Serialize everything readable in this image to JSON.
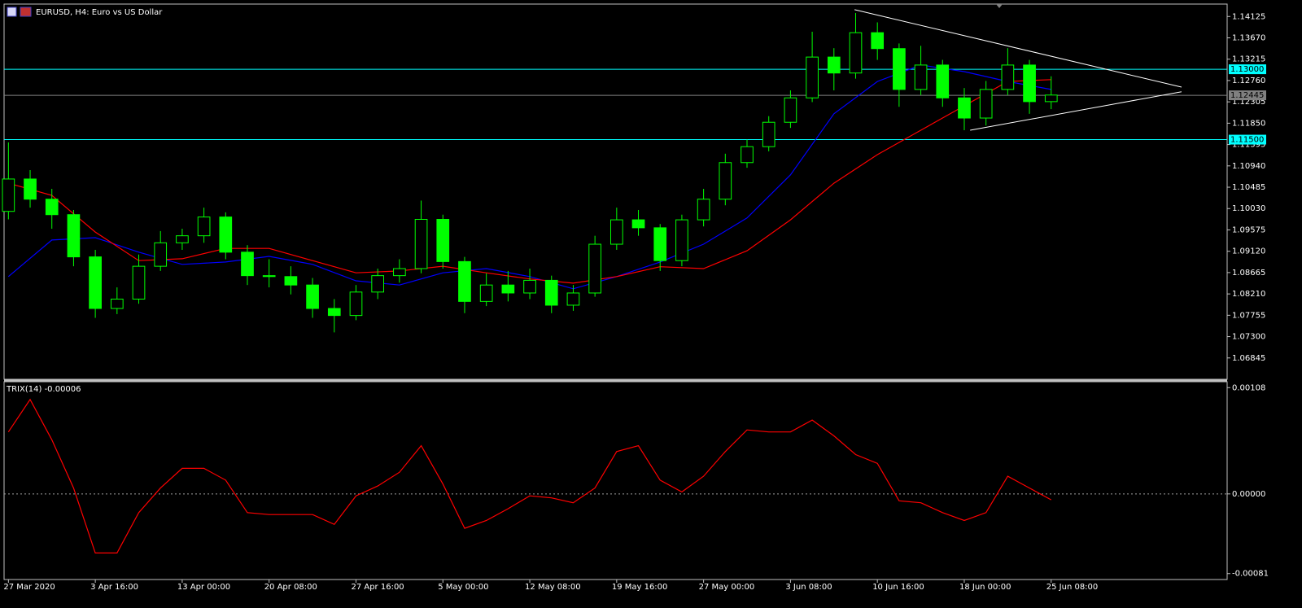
{
  "chart_data": [
    {
      "type": "candlestick",
      "title": "EURUSD, H4:  Euro vs US Dollar",
      "color": "#00ff00",
      "xlim": [
        -0.2,
        56.1
      ],
      "ylim": [
        1.0639,
        1.1439
      ],
      "yticks": [
        1.14125,
        {
          "value": 1.1367,
          "label": "1.13670"
        },
        1.13215,
        {
          "value": 1.1276,
          "label": "1.12760"
        },
        1.12305,
        {
          "value": 1.1185,
          "label": "1.11850"
        },
        1.11395,
        {
          "value": 1.1094,
          "label": "1.10940"
        },
        1.10485,
        {
          "value": 1.1003,
          "label": "1.10030"
        },
        1.09575,
        {
          "value": 1.0912,
          "label": "1.09120"
        },
        1.08665,
        {
          "value": 1.0821,
          "label": "1.08210"
        },
        1.07755,
        {
          "value": 1.073,
          "label": "1.07300"
        },
        1.06845
      ],
      "open": [
        1.0997,
        1.1066,
        1.1023,
        1.099,
        1.09,
        1.079,
        1.081,
        1.088,
        1.093,
        1.0945,
        1.0985,
        1.091,
        1.086,
        1.0858,
        1.084,
        1.079,
        1.0775,
        1.0825,
        1.086,
        1.0875,
        1.098,
        1.089,
        1.0805,
        1.084,
        1.0823,
        1.085,
        1.0797,
        1.0823,
        1.0927,
        1.0979,
        1.0962,
        1.0892,
        1.0979,
        1.1023,
        1.1101,
        1.1135,
        1.1187,
        1.1239,
        1.1326,
        1.1292,
        1.1378,
        1.1344,
        1.1257,
        1.1309,
        1.1239,
        1.1196,
        1.1257,
        1.1309,
        1.1231
      ],
      "high": [
        1.1144,
        1.1085,
        1.1045,
        1.1,
        1.0915,
        1.0835,
        1.0905,
        1.0955,
        1.096,
        1.1005,
        1.0995,
        1.0925,
        1.0895,
        1.088,
        1.0855,
        1.081,
        1.084,
        1.0875,
        1.0895,
        1.102,
        1.099,
        1.09,
        1.0865,
        1.087,
        1.0875,
        1.086,
        1.084,
        1.0945,
        1.1005,
        1.1,
        1.097,
        1.099,
        1.1045,
        1.112,
        1.115,
        1.12,
        1.1255,
        1.138,
        1.1345,
        1.142,
        1.14,
        1.1355,
        1.135,
        1.132,
        1.126,
        1.1275,
        1.1345,
        1.132,
        1.1285
      ],
      "low": [
        1.098,
        1.1005,
        1.096,
        1.088,
        1.077,
        1.0778,
        1.08,
        1.087,
        1.0915,
        1.093,
        1.0895,
        1.084,
        1.0835,
        1.082,
        1.077,
        1.0739,
        1.0765,
        1.081,
        1.0845,
        1.0865,
        1.0875,
        1.078,
        1.0795,
        1.0805,
        1.081,
        1.078,
        1.0785,
        1.0815,
        1.0915,
        1.0945,
        1.087,
        1.088,
        1.0965,
        1.101,
        1.109,
        1.1125,
        1.1175,
        1.123,
        1.1255,
        1.128,
        1.132,
        1.122,
        1.1245,
        1.122,
        1.117,
        1.118,
        1.1245,
        1.1205,
        1.1215
      ],
      "close": [
        1.1066,
        1.1023,
        1.099,
        1.09,
        1.079,
        1.081,
        1.088,
        1.093,
        1.0945,
        1.0985,
        1.091,
        1.086,
        1.0858,
        1.084,
        1.079,
        1.0775,
        1.0825,
        1.086,
        1.0875,
        1.098,
        1.089,
        1.0805,
        1.084,
        1.0823,
        1.085,
        1.0797,
        1.0823,
        1.0927,
        1.0979,
        1.0962,
        1.0892,
        1.0979,
        1.1023,
        1.1101,
        1.1135,
        1.1187,
        1.1239,
        1.1326,
        1.1292,
        1.1378,
        1.1344,
        1.1257,
        1.1309,
        1.1239,
        1.1196,
        1.1257,
        1.1309,
        1.1231,
        1.1245
      ],
      "series": [
        {
          "color": "#0000ff",
          "x": [
            0,
            2,
            4,
            6,
            8,
            10,
            12,
            14,
            16,
            18,
            20,
            22,
            24,
            26,
            28,
            30,
            32,
            34,
            36,
            38,
            40,
            42,
            44,
            46,
            48
          ],
          "values": [
            1.0858,
            1.0936,
            1.0941,
            1.091,
            1.0884,
            1.0889,
            1.0901,
            1.0884,
            1.0849,
            1.084,
            1.0866,
            1.0875,
            1.0858,
            1.0832,
            1.0858,
            1.0889,
            1.0927,
            1.0983,
            1.1075,
            1.1205,
            1.1274,
            1.1309,
            1.1295,
            1.1274,
            1.1257
          ]
        },
        {
          "color": "#ff0000",
          "x": [
            0,
            2,
            4,
            6,
            8,
            10,
            12,
            14,
            16,
            18,
            20,
            22,
            24,
            26,
            28,
            30,
            32,
            34,
            36,
            38,
            40,
            42,
            44,
            46,
            48
          ],
          "values": [
            1.1057,
            1.1031,
            1.0953,
            1.0892,
            1.0896,
            1.0918,
            1.0918,
            1.0892,
            1.0866,
            1.087,
            1.088,
            1.0866,
            1.0853,
            1.0844,
            1.0858,
            1.0879,
            1.0875,
            1.0913,
            1.0979,
            1.1057,
            1.1118,
            1.117,
            1.1222,
            1.1274,
            1.1278
          ]
        }
      ],
      "hlines": [
        {
          "value": 1.13,
          "label": "1.13000",
          "color": "#00ffff"
        },
        {
          "value": 1.115,
          "label": "1.11500",
          "color": "#00ffff"
        },
        {
          "value": 1.12445,
          "label": "1.12445",
          "color": "#808080"
        }
      ],
      "trendlines": [
        {
          "color": "#ffffff",
          "x": [
            38.95,
            54
          ],
          "y": [
            1.1427,
            1.1262
          ]
        },
        {
          "color": "#ffffff",
          "x": [
            44.27,
            54
          ],
          "y": [
            1.117,
            1.1252
          ]
        }
      ]
    },
    {
      "type": "line",
      "title": "TRIX(14) -0.00006",
      "xlim": [
        -0.2,
        56.1
      ],
      "ylim": [
        -0.00087,
        0.00114
      ],
      "yticks": [
        0.00108,
        {
          "value": 0,
          "label": "0.00000"
        },
        -0.00081
      ],
      "levels": [
        0
      ],
      "series": [
        {
          "color": "#ff0000",
          "values": [
            0.00063,
            0.00096,
            0.00055,
            6e-05,
            -0.0006,
            -0.0006,
            -0.00019,
            6e-05,
            0.00026,
            0.00026,
            0.00014,
            -0.00019,
            -0.00021,
            -0.00021,
            -0.00021,
            -0.00031,
            -2e-05,
            8e-05,
            0.00022,
            0.00049,
            0.0001,
            -0.00035,
            -0.00027,
            -0.00015,
            -2e-05,
            -4e-05,
            -9e-05,
            6e-05,
            0.00043,
            0.00049,
            0.00014,
            2e-05,
            0.00018,
            0.00043,
            0.00065,
            0.00063,
            0.00063,
            0.00075,
            0.00059,
            0.0004,
            0.00031,
            -7e-05,
            -9e-05,
            -0.00019,
            -0.00027,
            -0.00019,
            0.00018,
            6e-05,
            -6e-05
          ]
        }
      ],
      "xticks": [
        {
          "value": 0,
          "label": "27 Mar 2020"
        },
        {
          "value": 4,
          "label": "3 Apr 16:00"
        },
        {
          "value": 8,
          "label": "13 Apr 00:00"
        },
        {
          "value": 12,
          "label": "20 Apr 08:00"
        },
        {
          "value": 16,
          "label": "27 Apr 16:00"
        },
        {
          "value": 20,
          "label": "5 May 00:00"
        },
        {
          "value": 24,
          "label": "12 May 08:00"
        },
        {
          "value": 28,
          "label": "19 May 16:00"
        },
        {
          "value": 32,
          "label": "27 May 00:00"
        },
        {
          "value": 36,
          "label": "3 Jun 08:00"
        },
        {
          "value": 40,
          "label": "10 Jun 16:00"
        },
        {
          "value": 44,
          "label": "18 Jun 00:00"
        },
        {
          "value": 48,
          "label": "25 Jun 08:00"
        }
      ]
    }
  ]
}
